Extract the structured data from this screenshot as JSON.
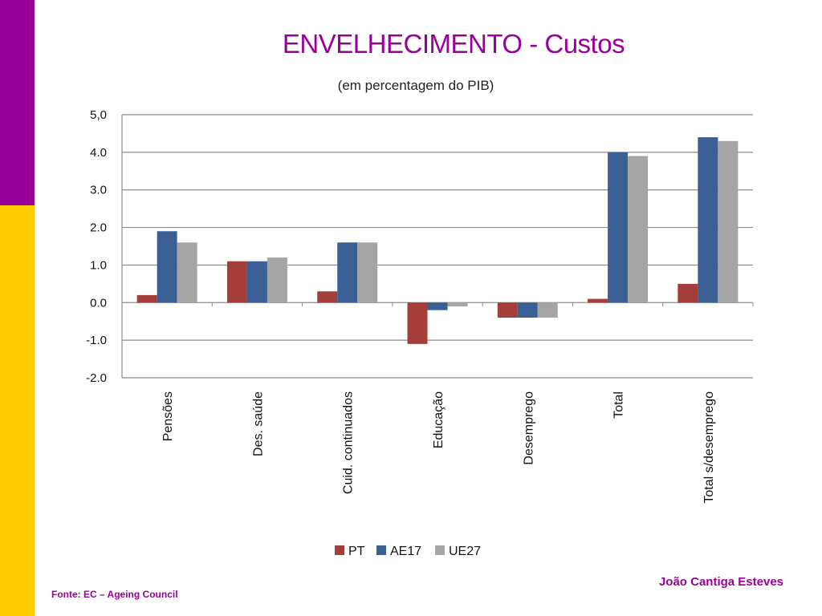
{
  "slide": {
    "title": "ENVELHECIMENTO - Custos",
    "author": "João Cantiga Esteves",
    "source": "Fonte: EC – Ageing Council"
  },
  "colors": {
    "accent_purple": "#990099",
    "accent_yellow": "#ffcc00"
  },
  "chart_data": {
    "type": "bar",
    "title": "",
    "subtitle": "(em percentagem do PIB)",
    "categories": [
      "Pensões",
      "Des. saúde",
      "Cuid. continuados",
      "Educação",
      "Desemprego",
      "Total",
      "Total s/desemprego"
    ],
    "series": [
      {
        "name": "PT",
        "color": "#a43e3a",
        "values": [
          0.2,
          1.1,
          0.3,
          -1.1,
          -0.4,
          0.1,
          0.5
        ]
      },
      {
        "name": "AE17",
        "color": "#3a5f95",
        "values": [
          1.9,
          1.1,
          1.6,
          -0.2,
          -0.4,
          4.0,
          4.4
        ]
      },
      {
        "name": "UE27",
        "color": "#a5a5a5",
        "values": [
          1.6,
          1.2,
          1.6,
          -0.1,
          -0.4,
          3.9,
          4.3
        ]
      }
    ],
    "ylim": [
      -2.0,
      5.0
    ],
    "yticks": [
      5.0,
      4.0,
      3.0,
      2.0,
      1.0,
      0.0,
      -1.0,
      -2.0
    ],
    "ytick_labels": [
      "5,0",
      "4.0",
      "3.0",
      "2.0",
      "1.0",
      "0.0",
      "-1.0",
      "-2.0"
    ],
    "grid": true,
    "legend_position": "bottom"
  }
}
